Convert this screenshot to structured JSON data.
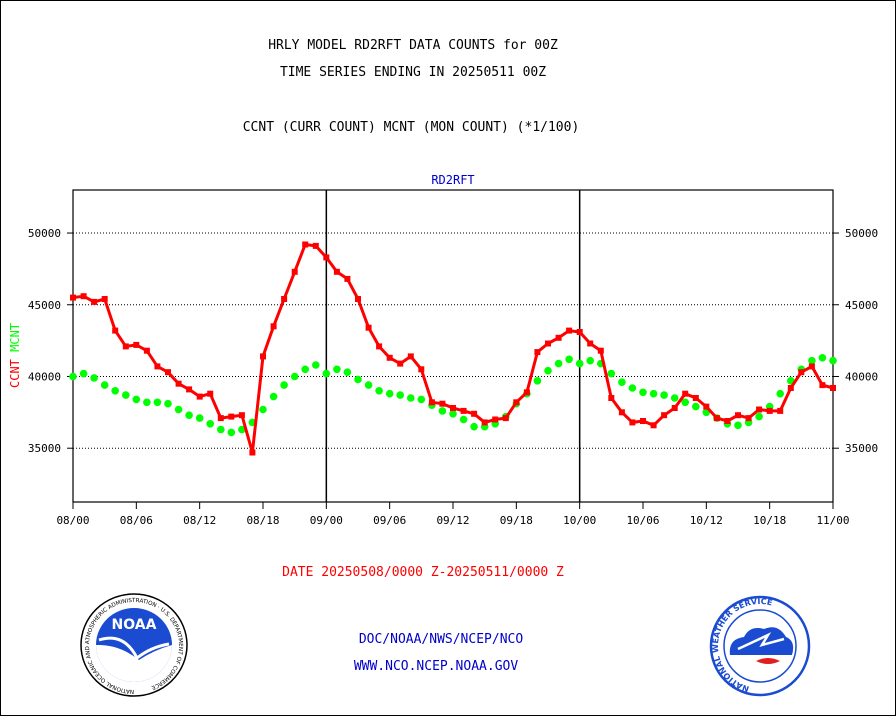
{
  "header": {
    "title_line1": "HRLY MODEL RD2RFT DATA COUNTS for 00Z",
    "title_line2": "TIME SERIES ENDING IN 20250511 00Z",
    "subtitle": "CCNT (CURR COUNT) MCNT (MON COUNT) (*1/100)"
  },
  "footer": {
    "date_range": "DATE 20250508/0000 Z-20250511/0000 Z",
    "org_line": "DOC/NOAA/NWS/NCEP/NCO",
    "url_line": "WWW.NCO.NCEP.NOAA.GOV"
  },
  "logos": {
    "left": {
      "icon": "noaa-logo-icon",
      "text": "NOAA",
      "ring_text": "NATIONAL OCEANIC AND ATMOSPHERIC ADMINISTRATION · U.S. DEPARTMENT OF COMMERCE"
    },
    "right": {
      "icon": "nws-logo-icon",
      "ring_text": "NATIONAL WEATHER SERVICE"
    }
  },
  "colors": {
    "ccnt": "#ff0000",
    "mcnt": "#00ff00",
    "blue_text": "#0000cc",
    "red_text": "#ff0000"
  },
  "chart_data": {
    "type": "line",
    "title": "RD2RFT",
    "ylabel_parts": [
      {
        "text": "CCNT",
        "color": "#ff0000"
      },
      {
        "text": "MCNT",
        "color": "#00ff00"
      }
    ],
    "ylim": [
      31250,
      53000
    ],
    "yticks": [
      35000,
      40000,
      45000,
      50000
    ],
    "ytick_labels": [
      "35000",
      "40000",
      "45000",
      "50000"
    ],
    "x_range": [
      0,
      72
    ],
    "xticks": [
      0,
      6,
      12,
      18,
      24,
      30,
      36,
      42,
      48,
      54,
      60,
      66,
      72
    ],
    "xtick_labels": [
      "08/00",
      "08/06",
      "08/12",
      "08/18",
      "09/00",
      "09/06",
      "09/12",
      "09/18",
      "10/00",
      "10/06",
      "10/12",
      "10/18",
      "11/00"
    ],
    "day_lines": [
      24,
      48
    ],
    "grid_y": true,
    "series": [
      {
        "name": "CCNT",
        "color": "#ff0000",
        "values": [
          45500,
          45600,
          45200,
          45400,
          43200,
          42100,
          42200,
          41800,
          40700,
          40300,
          39500,
          39100,
          38600,
          38800,
          37100,
          37200,
          37300,
          34700,
          41400,
          43500,
          45400,
          47300,
          49200,
          49100,
          48300,
          47300,
          46800,
          45400,
          43400,
          42100,
          41300,
          40900,
          41400,
          40500,
          38200,
          38100,
          37800,
          37600,
          37400,
          36800,
          37000,
          37100,
          38200,
          38900,
          41700,
          42300,
          42700,
          43200,
          43100,
          42300,
          41800,
          38500,
          37500,
          36800,
          36900,
          36600,
          37300,
          37800,
          38800,
          38500,
          37900,
          37100,
          36900,
          37300,
          37100,
          37700,
          37600,
          37600,
          39200,
          40300,
          40700,
          39400,
          39200
        ]
      },
      {
        "name": "MCNT",
        "color": "#00ff00",
        "values": [
          40000,
          40200,
          39900,
          39400,
          39000,
          38700,
          38400,
          38200,
          38200,
          38100,
          37700,
          37300,
          37100,
          36700,
          36300,
          36100,
          36300,
          36800,
          37700,
          38600,
          39400,
          40000,
          40500,
          40800,
          40200,
          40500,
          40300,
          39800,
          39400,
          39000,
          38800,
          38700,
          38500,
          38400,
          38000,
          37600,
          37400,
          37000,
          36500,
          36500,
          36700,
          37200,
          38100,
          38800,
          39700,
          40400,
          40900,
          41200,
          40900,
          41100,
          40900,
          40200,
          39600,
          39200,
          38900,
          38800,
          38700,
          38500,
          38200,
          37900,
          37500,
          37100,
          36700,
          36600,
          36800,
          37200,
          37900,
          38800,
          39700,
          40500,
          41100,
          41300,
          41100
        ]
      }
    ]
  }
}
